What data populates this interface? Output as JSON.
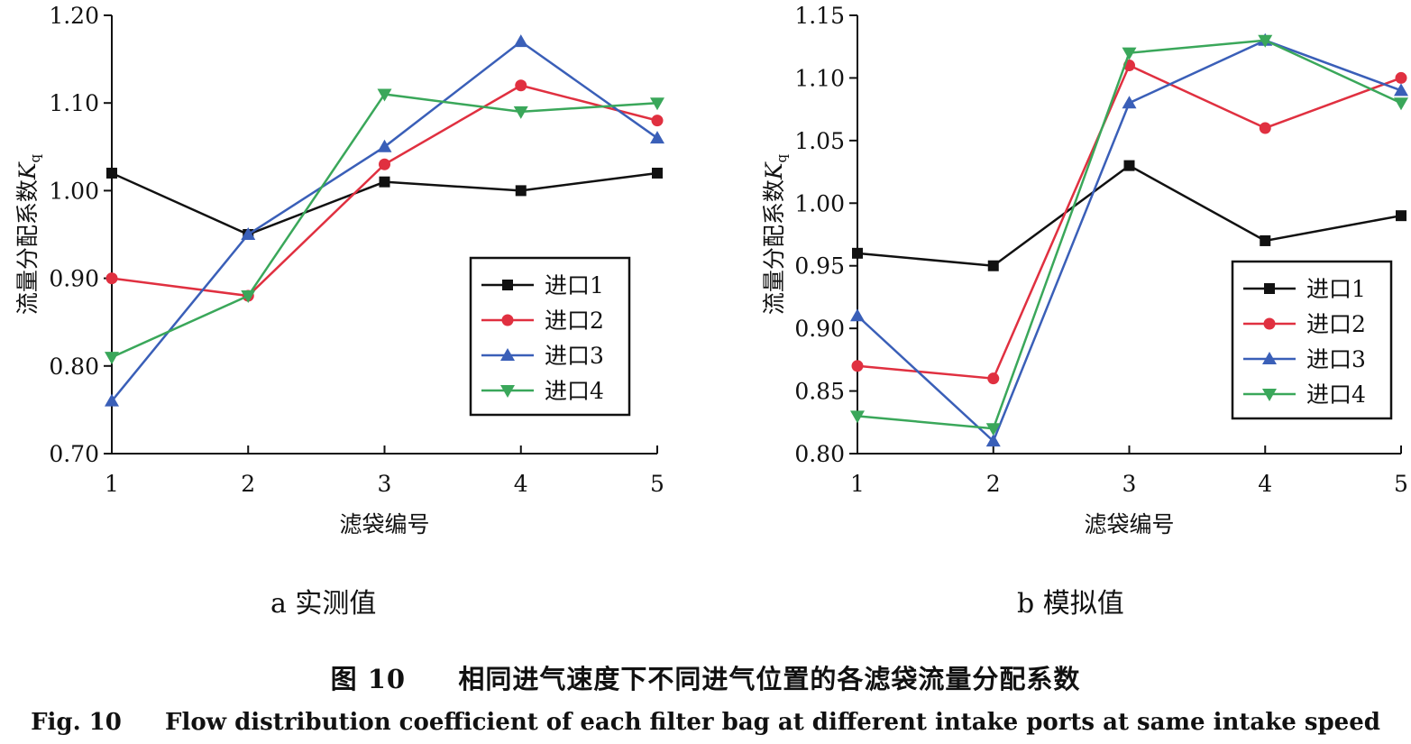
{
  "caption": {
    "cn_prefix": "图 10",
    "cn_text": "相同进气速度下不同进气位置的各滤袋流量分配系数",
    "en_prefix": "Fig. 10",
    "en_text": "Flow distribution coefficient of each filter bag at different intake ports at same intake speed"
  },
  "chart_data": [
    {
      "type": "line",
      "subtitle": "a 实测值",
      "xlabel": "滤袋编号",
      "ylabel_main": "流量分配系数",
      "ylabel_var": "K",
      "ylabel_sub": "q",
      "x": [
        1,
        2,
        3,
        4,
        5
      ],
      "xlim": [
        1,
        5
      ],
      "ylim": [
        0.7,
        1.2
      ],
      "yticks": [
        0.7,
        0.8,
        0.9,
        1.0,
        1.1,
        1.2
      ],
      "ytick_labels": [
        "0.70",
        "0.80",
        "0.90",
        "1.00",
        "1.10",
        "1.20"
      ],
      "xtick_labels": [
        "1",
        "2",
        "3",
        "4",
        "5"
      ],
      "grid": false,
      "legend": "bottom-right",
      "series": [
        {
          "name": "进口1",
          "values": [
            1.02,
            0.95,
            1.01,
            1.0,
            1.02
          ],
          "color": "#111111",
          "marker": "square"
        },
        {
          "name": "进口2",
          "values": [
            0.9,
            0.88,
            1.03,
            1.12,
            1.08
          ],
          "color": "#e03040",
          "marker": "circle"
        },
        {
          "name": "进口3",
          "values": [
            0.76,
            0.95,
            1.05,
            1.17,
            1.06
          ],
          "color": "#3a5fb8",
          "marker": "triangle-up"
        },
        {
          "name": "进口4",
          "values": [
            0.81,
            0.88,
            1.11,
            1.09,
            1.1
          ],
          "color": "#3aa75a",
          "marker": "triangle-down"
        }
      ]
    },
    {
      "type": "line",
      "subtitle": "b 模拟值",
      "xlabel": "滤袋编号",
      "ylabel_main": "流量分配系数",
      "ylabel_var": "K",
      "ylabel_sub": "q",
      "x": [
        1,
        2,
        3,
        4,
        5
      ],
      "xlim": [
        1,
        5
      ],
      "ylim": [
        0.8,
        1.15
      ],
      "yticks": [
        0.8,
        0.85,
        0.9,
        0.95,
        1.0,
        1.05,
        1.1,
        1.15
      ],
      "ytick_labels": [
        "0.80",
        "0.85",
        "0.90",
        "0.95",
        "1.00",
        "1.05",
        "1.10",
        "1.15"
      ],
      "xtick_labels": [
        "1",
        "2",
        "3",
        "4",
        "5"
      ],
      "grid": false,
      "legend": "bottom-right",
      "series": [
        {
          "name": "进口1",
          "values": [
            0.96,
            0.95,
            1.03,
            0.97,
            0.99
          ],
          "color": "#111111",
          "marker": "square"
        },
        {
          "name": "进口2",
          "values": [
            0.87,
            0.86,
            1.11,
            1.06,
            1.1
          ],
          "color": "#e03040",
          "marker": "circle"
        },
        {
          "name": "进口3",
          "values": [
            0.91,
            0.81,
            1.08,
            1.13,
            1.09
          ],
          "color": "#3a5fb8",
          "marker": "triangle-up"
        },
        {
          "name": "进口4",
          "values": [
            0.83,
            0.82,
            1.12,
            1.13,
            1.08
          ],
          "color": "#3aa75a",
          "marker": "triangle-down"
        }
      ]
    }
  ]
}
